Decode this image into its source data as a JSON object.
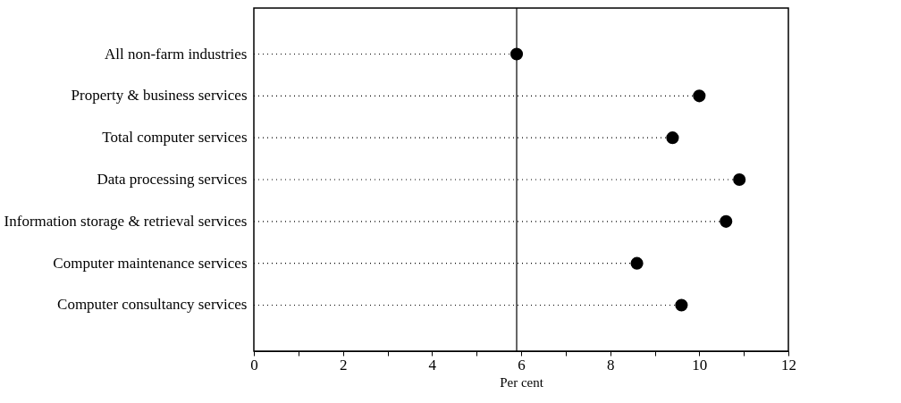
{
  "chart_data": {
    "type": "lollipop",
    "orientation": "horizontal",
    "xlabel": "Per cent",
    "categories": [
      "All non-farm industries",
      "Property & business services",
      "Total computer services",
      "Data processing services",
      "Information storage & retrieval services",
      "Computer maintenance services",
      "Computer consultancy services"
    ],
    "series": [
      {
        "color": "#000000",
        "values": [
          5.9,
          10.0,
          9.4,
          10.9,
          10.6,
          8.6,
          9.6
        ]
      }
    ],
    "xlim": [
      0,
      12
    ],
    "xticks": [
      0,
      {
        "value": 1,
        "label": null
      },
      2,
      {
        "value": 3,
        "label": null
      },
      4,
      {
        "value": 5,
        "label": null
      },
      6,
      {
        "value": 7,
        "label": null
      },
      8,
      {
        "value": 9,
        "label": null
      },
      10,
      {
        "value": 11,
        "label": null
      },
      12
    ],
    "ref_lines": [
      {
        "axis": "x",
        "value": 5.9,
        "color": "#000000",
        "line_style": "solid"
      }
    ],
    "marker": "circle",
    "line_style": "dotted",
    "grid": false
  }
}
